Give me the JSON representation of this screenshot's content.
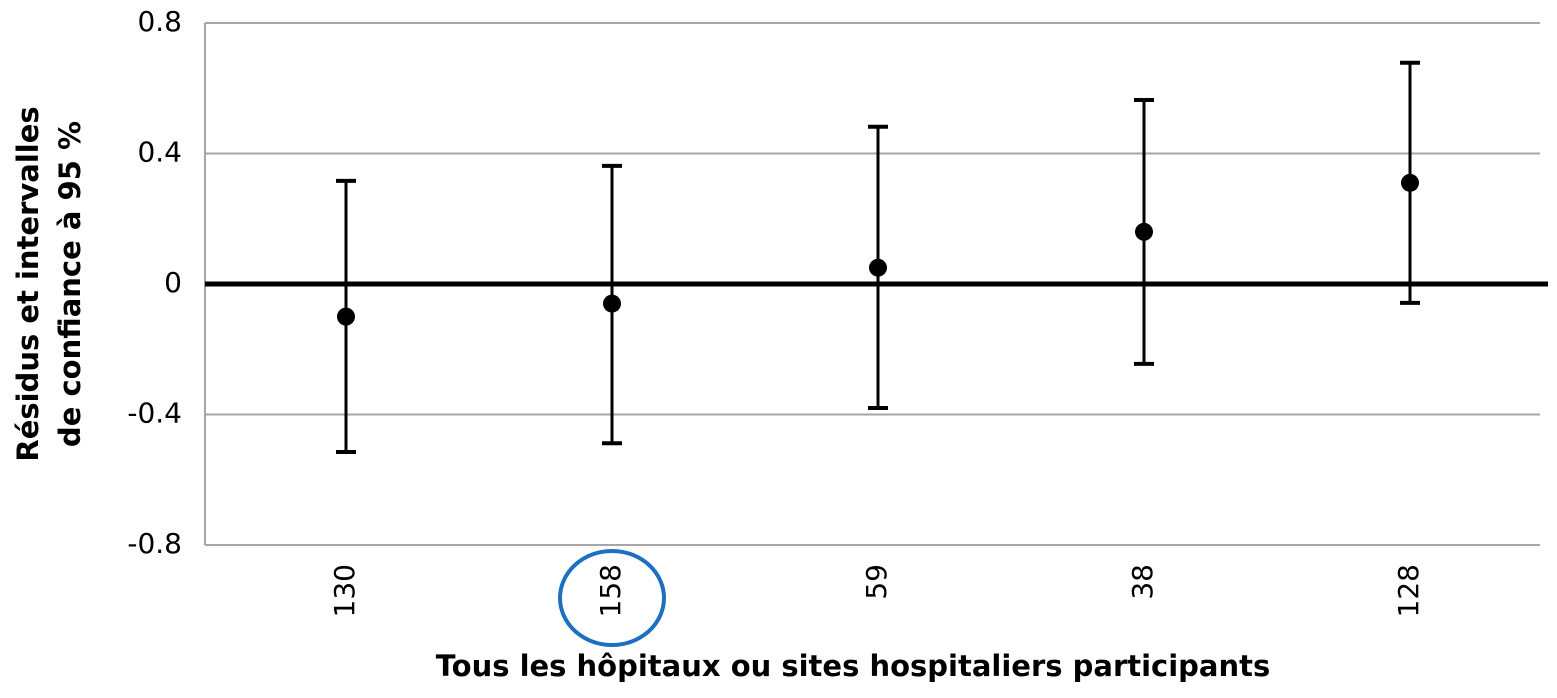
{
  "chart_data": {
    "type": "errorbar",
    "xlabel": "Tous les hôpitaux ou sites hospitaliers participants",
    "ylabel": [
      "Résidus et intervalles",
      "de confiance à 95 %"
    ],
    "categories": [
      "130",
      "158",
      "59",
      "38",
      "128"
    ],
    "values": [
      -0.1,
      -0.06,
      0.05,
      0.16,
      0.31
    ],
    "lower": [
      -0.515,
      -0.488,
      -0.38,
      -0.245,
      -0.058
    ],
    "upper": [
      0.316,
      0.362,
      0.482,
      0.564,
      0.678
    ],
    "color": "#000000",
    "ylim": [
      -0.8,
      0.8
    ],
    "yticks": [
      -0.8,
      -0.4,
      0,
      0.4,
      0.8
    ],
    "grid": true
  }
}
